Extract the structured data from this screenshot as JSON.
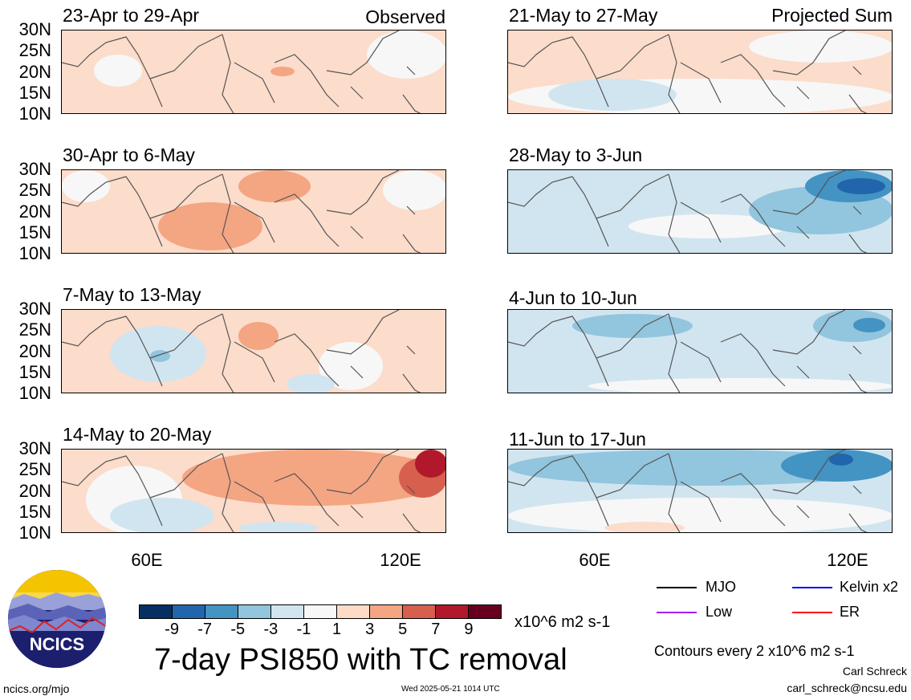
{
  "panels": [
    {
      "title": "23-Apr to 29-Apr",
      "corner": "Observed",
      "colors": {
        "base": "#fcdccb"
      }
    },
    {
      "title": "30-Apr to 6-May",
      "corner": "",
      "colors": {
        "base": "#fcdccb"
      }
    },
    {
      "title": "7-May to 13-May",
      "corner": "",
      "colors": {
        "base": "#fcdccb"
      }
    },
    {
      "title": "14-May to 20-May",
      "corner": "",
      "colors": {
        "base": "#fcdccb"
      }
    },
    {
      "title": "21-May to 27-May",
      "corner": "Projected Sum",
      "colors": {
        "base": "#fcdccb"
      }
    },
    {
      "title": "28-May to 3-Jun",
      "corner": "",
      "colors": {
        "base": "#d4e6f1"
      }
    },
    {
      "title": "4-Jun to 10-Jun",
      "corner": "",
      "colors": {
        "base": "#d4e6f1"
      }
    },
    {
      "title": "11-Jun to 17-Jun",
      "corner": "",
      "colors": {
        "base": "#d4e6f1"
      }
    }
  ],
  "lat_labels": [
    "30N",
    "25N",
    "20N",
    "15N",
    "10N"
  ],
  "lon_labels": [
    "60E",
    "120E"
  ],
  "colorbar": {
    "colors": [
      "#053061",
      "#2166ac",
      "#4393c3",
      "#92c5de",
      "#d1e5f0",
      "#f7f7f7",
      "#fddbc7",
      "#f4a582",
      "#d6604d",
      "#b2182b",
      "#67001f"
    ],
    "ticks": [
      "-9",
      "-7",
      "-5",
      "-3",
      "-1",
      "1",
      "3",
      "5",
      "7",
      "9"
    ],
    "unit": "x10^6 m2 s-1"
  },
  "title": "7-day PSI850 with TC removal",
  "legend": [
    {
      "label": "MJO",
      "color": "#000000"
    },
    {
      "label": "Kelvin x2",
      "color": "#0000ff"
    },
    {
      "label": "Low",
      "color": "#a020f0"
    },
    {
      "label": "ER",
      "color": "#ff0000"
    }
  ],
  "contours_note": "Contours every 2 x10^6 m2 s-1",
  "author": "Carl Schreck",
  "email": "carl_schreck@ncsu.edu",
  "url": "ncics.org/mjo",
  "timestamp": "Wed 2025-05-21 1014 UTC",
  "logo_text": "NCICS"
}
